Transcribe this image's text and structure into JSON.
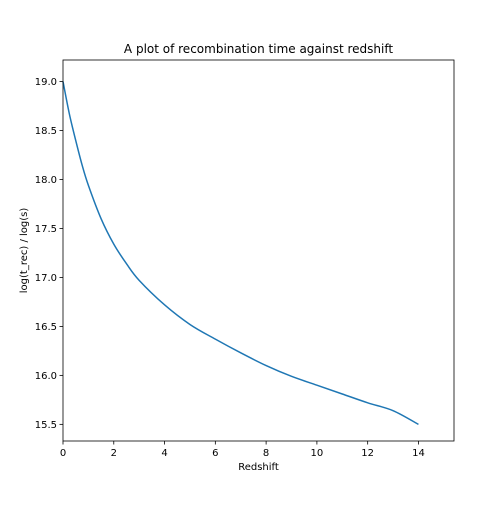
{
  "chart_data": {
    "type": "line",
    "title": "A plot of recombination time against redshift",
    "xlabel": "Redshift",
    "ylabel": "log(t_rec) / log(s)",
    "xlim": [
      0,
      15.4
    ],
    "ylim": [
      15.33,
      19.22
    ],
    "xticks": [
      0,
      2,
      4,
      6,
      8,
      10,
      12,
      14
    ],
    "xtick_labels": [
      "0",
      "2",
      "4",
      "6",
      "8",
      "10",
      "12",
      "14"
    ],
    "yticks": [
      15.5,
      16.0,
      16.5,
      17.0,
      17.5,
      18.0,
      18.5,
      19.0
    ],
    "ytick_labels": [
      "15.5",
      "16.0",
      "16.5",
      "17.0",
      "17.5",
      "18.0",
      "18.5",
      "19.0"
    ],
    "grid": false,
    "series": [
      {
        "color": "#1f77b4",
        "x": [
          0,
          0.25,
          0.5,
          0.75,
          1,
          1.5,
          2,
          2.5,
          3,
          4,
          5,
          6,
          7,
          8,
          9,
          10,
          11,
          12,
          13,
          14
        ],
        "y": [
          19.0,
          18.67,
          18.4,
          18.15,
          17.94,
          17.6,
          17.34,
          17.14,
          16.97,
          16.72,
          16.52,
          16.37,
          16.23,
          16.1,
          15.99,
          15.9,
          15.81,
          15.72,
          15.64,
          15.5
        ]
      }
    ]
  }
}
